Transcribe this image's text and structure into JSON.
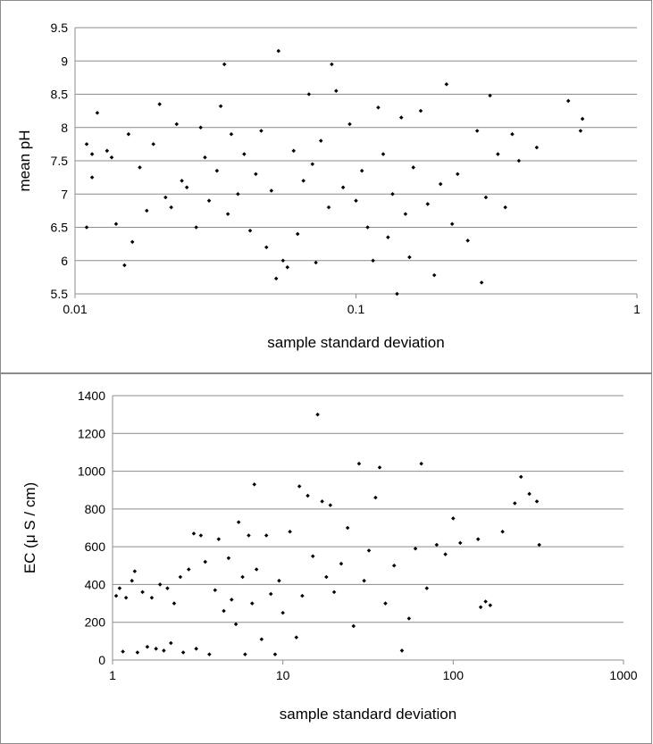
{
  "chart_data": [
    {
      "type": "scatter",
      "xlabel": "sample standard deviation",
      "ylabel": "mean pH",
      "x_scale": "log",
      "xlim": [
        0.01,
        1
      ],
      "ylim": [
        5.5,
        9.5
      ],
      "x_ticks": [
        0.01,
        0.1,
        1
      ],
      "x_tick_labels": [
        "0.01",
        "0.1",
        "1"
      ],
      "y_ticks": [
        5.5,
        6,
        6.5,
        7,
        7.5,
        8,
        8.5,
        9,
        9.5
      ],
      "y_tick_labels": [
        "5.5",
        "6",
        "6.5",
        "7",
        "7.5",
        "8",
        "8.5",
        "9",
        "9.5"
      ],
      "grid": "horizontal",
      "marker_color": "#000000",
      "series": [
        {
          "points": [
            [
              0.011,
              6.5
            ],
            [
              0.011,
              7.75
            ],
            [
              0.0115,
              7.6
            ],
            [
              0.0115,
              7.25
            ],
            [
              0.012,
              8.22
            ],
            [
              0.013,
              7.65
            ],
            [
              0.0135,
              7.55
            ],
            [
              0.014,
              6.55
            ],
            [
              0.015,
              5.93
            ],
            [
              0.0155,
              7.9
            ],
            [
              0.016,
              6.28
            ],
            [
              0.017,
              7.4
            ],
            [
              0.018,
              6.75
            ],
            [
              0.019,
              7.75
            ],
            [
              0.02,
              8.35
            ],
            [
              0.021,
              6.95
            ],
            [
              0.022,
              6.8
            ],
            [
              0.023,
              8.05
            ],
            [
              0.024,
              7.2
            ],
            [
              0.025,
              7.1
            ],
            [
              0.027,
              6.5
            ],
            [
              0.028,
              8.0
            ],
            [
              0.029,
              7.55
            ],
            [
              0.03,
              6.9
            ],
            [
              0.032,
              7.35
            ],
            [
              0.033,
              8.32
            ],
            [
              0.034,
              8.95
            ],
            [
              0.035,
              6.7
            ],
            [
              0.036,
              7.9
            ],
            [
              0.038,
              7.0
            ],
            [
              0.04,
              7.6
            ],
            [
              0.042,
              6.45
            ],
            [
              0.044,
              7.3
            ],
            [
              0.046,
              7.95
            ],
            [
              0.048,
              6.2
            ],
            [
              0.05,
              7.05
            ],
            [
              0.052,
              5.73
            ],
            [
              0.053,
              9.15
            ],
            [
              0.055,
              6.0
            ],
            [
              0.057,
              5.9
            ],
            [
              0.06,
              7.65
            ],
            [
              0.062,
              6.4
            ],
            [
              0.065,
              7.2
            ],
            [
              0.068,
              8.5
            ],
            [
              0.07,
              7.45
            ],
            [
              0.072,
              5.97
            ],
            [
              0.075,
              7.8
            ],
            [
              0.08,
              6.8
            ],
            [
              0.082,
              8.95
            ],
            [
              0.085,
              8.55
            ],
            [
              0.09,
              7.1
            ],
            [
              0.095,
              8.05
            ],
            [
              0.1,
              6.9
            ],
            [
              0.105,
              7.35
            ],
            [
              0.11,
              6.5
            ],
            [
              0.115,
              6.0
            ],
            [
              0.12,
              8.3
            ],
            [
              0.125,
              7.6
            ],
            [
              0.13,
              6.35
            ],
            [
              0.135,
              7.0
            ],
            [
              0.14,
              5.5
            ],
            [
              0.145,
              8.15
            ],
            [
              0.15,
              6.7
            ],
            [
              0.155,
              6.05
            ],
            [
              0.16,
              7.4
            ],
            [
              0.17,
              8.25
            ],
            [
              0.18,
              6.85
            ],
            [
              0.19,
              5.78
            ],
            [
              0.2,
              7.15
            ],
            [
              0.21,
              8.65
            ],
            [
              0.22,
              6.55
            ],
            [
              0.23,
              7.3
            ],
            [
              0.25,
              6.3
            ],
            [
              0.27,
              7.95
            ],
            [
              0.28,
              5.67
            ],
            [
              0.29,
              6.95
            ],
            [
              0.3,
              8.48
            ],
            [
              0.32,
              7.6
            ],
            [
              0.34,
              6.8
            ],
            [
              0.36,
              7.9
            ],
            [
              0.38,
              7.5
            ],
            [
              0.44,
              7.7
            ],
            [
              0.57,
              8.4
            ],
            [
              0.63,
              7.95
            ],
            [
              0.64,
              8.13
            ]
          ]
        }
      ]
    },
    {
      "type": "scatter",
      "xlabel": "sample standard deviation",
      "ylabel": "EC (μ S / cm)",
      "x_scale": "log",
      "xlim": [
        1,
        1000
      ],
      "ylim": [
        0,
        1400
      ],
      "x_ticks": [
        1,
        10,
        100,
        1000
      ],
      "x_tick_labels": [
        "1",
        "10",
        "100",
        "1000"
      ],
      "y_ticks": [
        0,
        200,
        400,
        600,
        800,
        1000,
        1200,
        1400
      ],
      "y_tick_labels": [
        "0",
        "200",
        "400",
        "600",
        "800",
        "1000",
        "1200",
        "1400"
      ],
      "grid": "horizontal",
      "marker_color": "#000000",
      "series": [
        {
          "points": [
            [
              1.05,
              340
            ],
            [
              1.1,
              380
            ],
            [
              1.15,
              45
            ],
            [
              1.2,
              330
            ],
            [
              1.3,
              420
            ],
            [
              1.35,
              470
            ],
            [
              1.4,
              40
            ],
            [
              1.5,
              360
            ],
            [
              1.6,
              70
            ],
            [
              1.7,
              330
            ],
            [
              1.8,
              60
            ],
            [
              1.9,
              400
            ],
            [
              2.0,
              50
            ],
            [
              2.1,
              380
            ],
            [
              2.2,
              90
            ],
            [
              2.3,
              300
            ],
            [
              2.5,
              440
            ],
            [
              2.6,
              40
            ],
            [
              2.8,
              480
            ],
            [
              3.0,
              670
            ],
            [
              3.1,
              60
            ],
            [
              3.3,
              660
            ],
            [
              3.5,
              520
            ],
            [
              3.7,
              30
            ],
            [
              4.0,
              370
            ],
            [
              4.2,
              640
            ],
            [
              4.5,
              260
            ],
            [
              4.8,
              540
            ],
            [
              5.0,
              320
            ],
            [
              5.3,
              190
            ],
            [
              5.5,
              730
            ],
            [
              5.8,
              440
            ],
            [
              6.0,
              30
            ],
            [
              6.3,
              660
            ],
            [
              6.6,
              300
            ],
            [
              6.8,
              930
            ],
            [
              7.0,
              480
            ],
            [
              7.5,
              110
            ],
            [
              8.0,
              660
            ],
            [
              8.5,
              350
            ],
            [
              9.0,
              30
            ],
            [
              9.5,
              420
            ],
            [
              10,
              250
            ],
            [
              11,
              680
            ],
            [
              12,
              120
            ],
            [
              12.5,
              920
            ],
            [
              13,
              340
            ],
            [
              14,
              870
            ],
            [
              15,
              550
            ],
            [
              16,
              1300
            ],
            [
              17,
              840
            ],
            [
              18,
              440
            ],
            [
              19,
              820
            ],
            [
              20,
              360
            ],
            [
              22,
              510
            ],
            [
              24,
              700
            ],
            [
              26,
              180
            ],
            [
              28,
              1040
            ],
            [
              30,
              420
            ],
            [
              32,
              580
            ],
            [
              35,
              860
            ],
            [
              37,
              1020
            ],
            [
              40,
              300
            ],
            [
              45,
              500
            ],
            [
              50,
              50
            ],
            [
              55,
              220
            ],
            [
              60,
              590
            ],
            [
              65,
              1040
            ],
            [
              70,
              380
            ],
            [
              80,
              610
            ],
            [
              90,
              560
            ],
            [
              100,
              750
            ],
            [
              110,
              620
            ],
            [
              140,
              640
            ],
            [
              145,
              280
            ],
            [
              155,
              310
            ],
            [
              165,
              290
            ],
            [
              195,
              680
            ],
            [
              230,
              830
            ],
            [
              250,
              970
            ],
            [
              280,
              880
            ],
            [
              310,
              840
            ],
            [
              320,
              610
            ]
          ]
        }
      ]
    }
  ]
}
